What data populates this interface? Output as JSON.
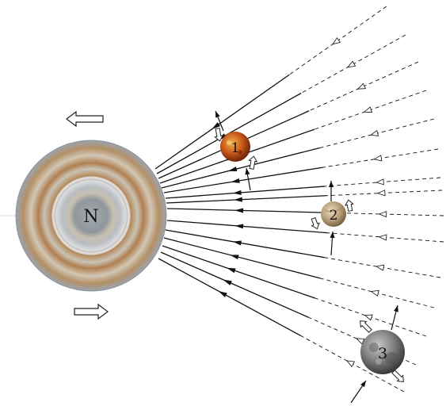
{
  "planet": {
    "label": "N"
  },
  "moons": [
    {
      "label": "1",
      "icon": "io-moon-icon"
    },
    {
      "label": "2",
      "icon": "europa-moon-icon"
    },
    {
      "label": "3",
      "icon": "ganymede-moon-icon"
    }
  ],
  "colors": {
    "ray": "#111111",
    "planet_outer": "#9a9faa",
    "planet_band": "#b88a5a",
    "planet_center": "#8f969c",
    "moon1": "#c45a12",
    "moon2": "#b9a27a",
    "moon3": "#7b7b7b"
  }
}
